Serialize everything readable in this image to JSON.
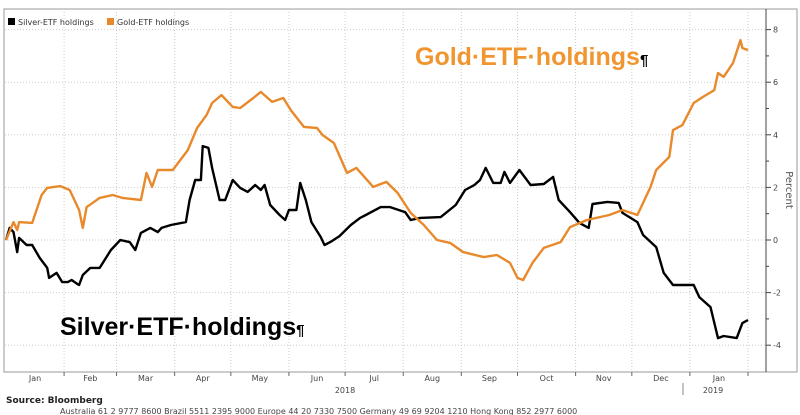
{
  "chart_data": {
    "type": "line",
    "title": "",
    "xlabel": "",
    "ylabel": "Percent",
    "ylim": [
      -4.5,
      8.5
    ],
    "xlim": [
      "2018-01-01",
      "2019-02-05"
    ],
    "yticks": [
      "8",
      "6",
      "4",
      "2",
      "0",
      "-2",
      "-4"
    ],
    "ytick_values": [
      8,
      6,
      4,
      2,
      0,
      -2,
      -4
    ],
    "xticks": [
      "Jan",
      "Feb",
      "Mar",
      "Apr",
      "May",
      "Jun",
      "Jul",
      "Aug",
      "Sep",
      "Oct",
      "Nov",
      "Dec",
      "Jan"
    ],
    "year_labels": [
      "2018",
      "2019"
    ],
    "grid": true,
    "legend": "top-left",
    "series": [
      {
        "name": "Silver-ETF holdings",
        "color": "#000000",
        "points": [
          [
            "2018-01-01",
            0
          ],
          [
            "2018-01-03",
            0.46
          ],
          [
            "2018-01-05",
            0.3
          ],
          [
            "2018-01-07",
            -0.46
          ],
          [
            "2018-01-08",
            0.08
          ],
          [
            "2018-01-12",
            -0.19
          ],
          [
            "2018-01-15",
            -0.19
          ],
          [
            "2018-01-19",
            -0.68
          ],
          [
            "2018-01-23",
            -1.06
          ],
          [
            "2018-01-24",
            -1.44
          ],
          [
            "2018-01-28",
            -1.25
          ],
          [
            "2018-01-31",
            -1.6
          ],
          [
            "2018-02-03",
            -1.6
          ],
          [
            "2018-02-05",
            -1.52
          ],
          [
            "2018-02-08",
            -1.67
          ],
          [
            "2018-02-09",
            -1.71
          ],
          [
            "2018-02-11",
            -1.33
          ],
          [
            "2018-02-15",
            -1.06
          ],
          [
            "2018-02-20",
            -1.06
          ],
          [
            "2018-02-26",
            -0.38
          ],
          [
            "2018-03-03",
            0
          ],
          [
            "2018-03-08",
            -0.08
          ],
          [
            "2018-03-11",
            -0.38
          ],
          [
            "2018-03-14",
            0.27
          ],
          [
            "2018-03-19",
            0.46
          ],
          [
            "2018-03-23",
            0.3
          ],
          [
            "2018-03-25",
            0.46
          ],
          [
            "2018-03-30",
            0.57
          ],
          [
            "2018-04-07",
            0.68
          ],
          [
            "2018-04-09",
            1.52
          ],
          [
            "2018-04-12",
            2.28
          ],
          [
            "2018-04-15",
            2.28
          ],
          [
            "2018-04-16",
            3.57
          ],
          [
            "2018-04-19",
            3.5
          ],
          [
            "2018-04-21",
            2.74
          ],
          [
            "2018-04-25",
            1.52
          ],
          [
            "2018-04-28",
            1.52
          ],
          [
            "2018-05-02",
            2.28
          ],
          [
            "2018-05-06",
            1.98
          ],
          [
            "2018-05-10",
            1.83
          ],
          [
            "2018-05-14",
            2.09
          ],
          [
            "2018-05-17",
            1.9
          ],
          [
            "2018-05-19",
            2.09
          ],
          [
            "2018-05-22",
            1.33
          ],
          [
            "2018-05-27",
            0.95
          ],
          [
            "2018-05-30",
            0.76
          ],
          [
            "2018-06-01",
            1.14
          ],
          [
            "2018-06-05",
            1.14
          ],
          [
            "2018-06-07",
            2.17
          ],
          [
            "2018-06-10",
            1.52
          ],
          [
            "2018-06-13",
            0.68
          ],
          [
            "2018-06-18",
            0.11
          ],
          [
            "2018-06-20",
            -0.19
          ],
          [
            "2018-06-23",
            -0.08
          ],
          [
            "2018-06-28",
            0.15
          ],
          [
            "2018-07-04",
            0.57
          ],
          [
            "2018-07-09",
            0.84
          ],
          [
            "2018-07-12",
            0.95
          ],
          [
            "2018-07-20",
            1.25
          ],
          [
            "2018-07-25",
            1.25
          ],
          [
            "2018-08-02",
            1.06
          ],
          [
            "2018-08-05",
            0.76
          ],
          [
            "2018-08-10",
            0.84
          ],
          [
            "2018-08-21",
            0.87
          ],
          [
            "2018-08-29",
            1.33
          ],
          [
            "2018-09-03",
            1.9
          ],
          [
            "2018-09-08",
            2.09
          ],
          [
            "2018-09-11",
            2.28
          ],
          [
            "2018-09-14",
            2.74
          ],
          [
            "2018-09-18",
            2.17
          ],
          [
            "2018-09-22",
            2.17
          ],
          [
            "2018-09-24",
            2.59
          ],
          [
            "2018-09-27",
            2.17
          ],
          [
            "2018-10-02",
            2.66
          ],
          [
            "2018-10-08",
            2.09
          ],
          [
            "2018-10-15",
            2.13
          ],
          [
            "2018-10-20",
            2.4
          ],
          [
            "2018-10-23",
            1.52
          ],
          [
            "2018-10-29",
            1.06
          ],
          [
            "2018-11-03",
            0.65
          ],
          [
            "2018-11-08",
            0.46
          ],
          [
            "2018-11-10",
            1.37
          ],
          [
            "2018-11-18",
            1.45
          ],
          [
            "2018-11-24",
            1.41
          ],
          [
            "2018-11-26",
            1.03
          ],
          [
            "2018-12-04",
            0.68
          ],
          [
            "2018-12-07",
            0.19
          ],
          [
            "2018-12-14",
            -0.27
          ],
          [
            "2018-12-18",
            -1.25
          ],
          [
            "2018-12-23",
            -1.71
          ],
          [
            "2019-01-03",
            -1.71
          ],
          [
            "2019-01-06",
            -2.17
          ],
          [
            "2019-01-12",
            -2.55
          ],
          [
            "2019-01-16",
            -3.73
          ],
          [
            "2019-01-19",
            -3.65
          ],
          [
            "2019-01-26",
            -3.73
          ],
          [
            "2019-01-29",
            -3.16
          ],
          [
            "2019-02-01",
            -3.04
          ]
        ]
      },
      {
        "name": "Gold-ETF holdings",
        "color": "#e8892b",
        "points": [
          [
            "2018-01-01",
            0
          ],
          [
            "2018-01-05",
            0.68
          ],
          [
            "2018-01-07",
            0.38
          ],
          [
            "2018-01-08",
            0.68
          ],
          [
            "2018-01-15",
            0.65
          ],
          [
            "2018-01-20",
            1.71
          ],
          [
            "2018-01-23",
            1.98
          ],
          [
            "2018-01-30",
            2.05
          ],
          [
            "2018-02-04",
            1.9
          ],
          [
            "2018-02-09",
            1.14
          ],
          [
            "2018-02-11",
            0.46
          ],
          [
            "2018-02-13",
            1.25
          ],
          [
            "2018-02-16",
            1.4
          ],
          [
            "2018-02-20",
            1.6
          ],
          [
            "2018-02-27",
            1.71
          ],
          [
            "2018-03-04",
            1.6
          ],
          [
            "2018-03-14",
            1.52
          ],
          [
            "2018-03-17",
            2.55
          ],
          [
            "2018-03-20",
            2.02
          ],
          [
            "2018-03-23",
            2.66
          ],
          [
            "2018-03-31",
            2.66
          ],
          [
            "2018-04-08",
            3.42
          ],
          [
            "2018-04-13",
            4.26
          ],
          [
            "2018-04-18",
            4.75
          ],
          [
            "2018-04-21",
            5.21
          ],
          [
            "2018-04-26",
            5.51
          ],
          [
            "2018-05-02",
            5.06
          ],
          [
            "2018-05-06",
            5.02
          ],
          [
            "2018-05-13",
            5.4
          ],
          [
            "2018-05-17",
            5.63
          ],
          [
            "2018-05-23",
            5.25
          ],
          [
            "2018-05-29",
            5.4
          ],
          [
            "2018-06-02",
            4.94
          ],
          [
            "2018-06-09",
            4.3
          ],
          [
            "2018-06-16",
            4.26
          ],
          [
            "2018-06-19",
            3.99
          ],
          [
            "2018-06-25",
            3.69
          ],
          [
            "2018-07-02",
            2.55
          ],
          [
            "2018-07-07",
            2.74
          ],
          [
            "2018-07-16",
            2.02
          ],
          [
            "2018-07-23",
            2.21
          ],
          [
            "2018-07-29",
            1.79
          ],
          [
            "2018-08-05",
            1.03
          ],
          [
            "2018-08-12",
            0.57
          ],
          [
            "2018-08-19",
            0
          ],
          [
            "2018-08-26",
            -0.11
          ],
          [
            "2018-09-02",
            -0.46
          ],
          [
            "2018-09-13",
            -0.65
          ],
          [
            "2018-09-20",
            -0.57
          ],
          [
            "2018-09-27",
            -0.87
          ],
          [
            "2018-10-01",
            -1.44
          ],
          [
            "2018-10-04",
            -1.52
          ],
          [
            "2018-10-09",
            -0.87
          ],
          [
            "2018-10-15",
            -0.3
          ],
          [
            "2018-10-24",
            -0.08
          ],
          [
            "2018-10-29",
            0.49
          ],
          [
            "2018-11-07",
            0.76
          ],
          [
            "2018-11-19",
            0.95
          ],
          [
            "2018-11-26",
            1.14
          ],
          [
            "2018-12-04",
            0.95
          ],
          [
            "2018-12-11",
            2.02
          ],
          [
            "2018-12-14",
            2.66
          ],
          [
            "2018-12-21",
            3.16
          ],
          [
            "2018-12-23",
            4.18
          ],
          [
            "2018-12-28",
            4.37
          ],
          [
            "2019-01-03",
            5.21
          ],
          [
            "2019-01-08",
            5.44
          ],
          [
            "2019-01-14",
            5.7
          ],
          [
            "2019-01-16",
            6.35
          ],
          [
            "2019-01-19",
            6.2
          ],
          [
            "2019-01-24",
            6.73
          ],
          [
            "2019-01-28",
            7.6
          ],
          [
            "2019-01-29",
            7.3
          ],
          [
            "2019-02-01",
            7.22
          ]
        ]
      }
    ],
    "annotations": {
      "gold": "Gold·ETF·holdings",
      "silver": "Silver·ETF·holdings",
      "pilcrow": "¶"
    }
  },
  "source": "Source: Bloomberg",
  "footer": "Australia 61 2 9777 8600 Brazil 5511 2395 9000 Europe 44 20 7330 7500 Germany 49 69 9204 1210 Hong Kong 852 2977 6000"
}
